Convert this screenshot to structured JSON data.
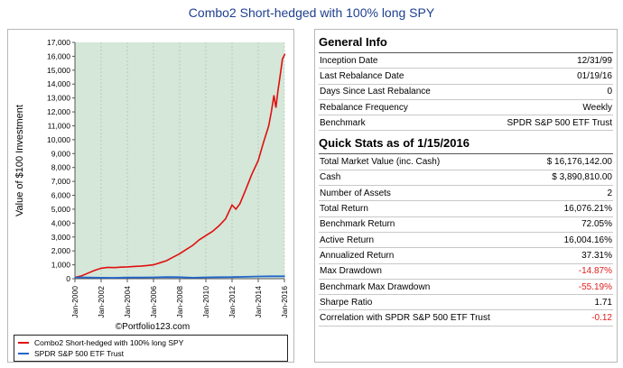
{
  "title": "Combo2 Short-hedged with 100% long SPY",
  "chart_data": {
    "type": "line",
    "ylabel": "Value of $100 Investment",
    "xlabel": "",
    "ylim": [
      0,
      17000
    ],
    "xlim": [
      2000,
      2016
    ],
    "y_ticks": [
      "17,000",
      "16,000",
      "15,000",
      "14,000",
      "13,000",
      "12,000",
      "11,000",
      "10,000",
      "9,000",
      "8,000",
      "7,000",
      "6,000",
      "5,000",
      "4,000",
      "3,000",
      "2,000",
      "1,000",
      "0"
    ],
    "x_ticks": [
      "Jan-2000",
      "Jan-2002",
      "Jan-2004",
      "Jan-2006",
      "Jan-2008",
      "Jan-2010",
      "Jan-2012",
      "Jan-2014",
      "Jan-2016"
    ],
    "credit": "©Portfolio123.com",
    "background": "#d4e7d8",
    "series": [
      {
        "name": "Combo2 Short-hedged with 100% long SPY",
        "color": "#e01010",
        "points": [
          [
            2000,
            100
          ],
          [
            2000.5,
            200
          ],
          [
            2001,
            400
          ],
          [
            2001.5,
            600
          ],
          [
            2002,
            750
          ],
          [
            2002.5,
            820
          ],
          [
            2003,
            800
          ],
          [
            2003.5,
            830
          ],
          [
            2004,
            850
          ],
          [
            2004.5,
            880
          ],
          [
            2005,
            900
          ],
          [
            2005.5,
            950
          ],
          [
            2006,
            1000
          ],
          [
            2006.5,
            1150
          ],
          [
            2007,
            1300
          ],
          [
            2007.5,
            1550
          ],
          [
            2008,
            1800
          ],
          [
            2008.5,
            2100
          ],
          [
            2009,
            2400
          ],
          [
            2009.5,
            2800
          ],
          [
            2010,
            3100
          ],
          [
            2010.5,
            3400
          ],
          [
            2011,
            3800
          ],
          [
            2011.5,
            4300
          ],
          [
            2011.8,
            4900
          ],
          [
            2012,
            5300
          ],
          [
            2012.3,
            5000
          ],
          [
            2012.6,
            5400
          ],
          [
            2013,
            6300
          ],
          [
            2013.5,
            7500
          ],
          [
            2014,
            8500
          ],
          [
            2014.4,
            9800
          ],
          [
            2014.8,
            11000
          ],
          [
            2015,
            12000
          ],
          [
            2015.2,
            13200
          ],
          [
            2015.35,
            12300
          ],
          [
            2015.5,
            13500
          ],
          [
            2015.7,
            14800
          ],
          [
            2015.85,
            15800
          ],
          [
            2016.04,
            16176
          ]
        ]
      },
      {
        "name": "SPDR S&P 500 ETF Trust",
        "color": "#2266cc",
        "points": [
          [
            2000,
            100
          ],
          [
            2001,
            90
          ],
          [
            2002,
            70
          ],
          [
            2003,
            65
          ],
          [
            2004,
            85
          ],
          [
            2005,
            92
          ],
          [
            2006,
            100
          ],
          [
            2007,
            118
          ],
          [
            2008,
            110
          ],
          [
            2009,
            70
          ],
          [
            2010,
            95
          ],
          [
            2011,
            110
          ],
          [
            2012,
            115
          ],
          [
            2013,
            135
          ],
          [
            2014,
            165
          ],
          [
            2015,
            178
          ],
          [
            2016.04,
            172
          ]
        ]
      }
    ]
  },
  "general_info": {
    "heading": "General Info",
    "rows": [
      {
        "label": "Inception Date",
        "value": "12/31/99"
      },
      {
        "label": "Last Rebalance Date",
        "value": "01/19/16"
      },
      {
        "label": "Days Since Last Rebalance",
        "value": "0"
      },
      {
        "label": "Rebalance Frequency",
        "value": "Weekly"
      },
      {
        "label": "Benchmark",
        "value": "SPDR S&P 500 ETF Trust"
      }
    ]
  },
  "quick_stats": {
    "heading": "Quick Stats as of 1/15/2016",
    "negative_color": "#e02020",
    "rows": [
      {
        "label": "Total Market Value (inc. Cash)",
        "value": "$ 16,176,142.00",
        "negative": false
      },
      {
        "label": "Cash",
        "value": "$ 3,890,810.00",
        "negative": false
      },
      {
        "label": "Number of Assets",
        "value": "2",
        "negative": false
      },
      {
        "label": "Total Return",
        "value": "16,076.21%",
        "negative": false
      },
      {
        "label": "Benchmark Return",
        "value": "72.05%",
        "negative": false
      },
      {
        "label": "Active Return",
        "value": "16,004.16%",
        "negative": false
      },
      {
        "label": "Annualized Return",
        "value": "37.31%",
        "negative": false
      },
      {
        "label": "Max Drawdown",
        "value": "-14.87%",
        "negative": true
      },
      {
        "label": "Benchmark Max Drawdown",
        "value": "-55.19%",
        "negative": true
      },
      {
        "label": "Sharpe Ratio",
        "value": "1.71",
        "negative": false
      },
      {
        "label": "Correlation with SPDR S&P 500 ETF Trust",
        "value": "-0.12",
        "negative": true
      }
    ]
  }
}
